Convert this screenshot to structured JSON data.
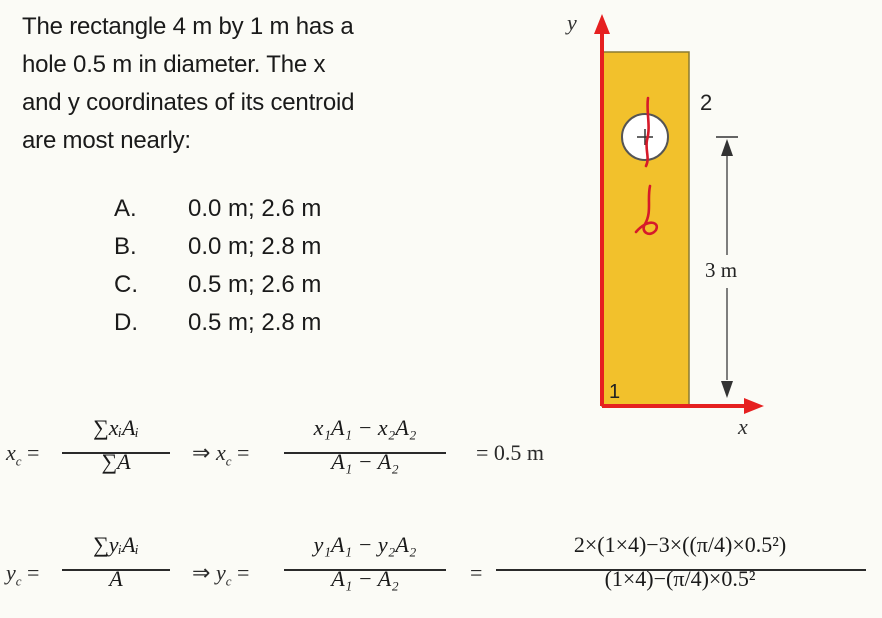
{
  "question": {
    "lines": [
      "The rectangle 4 m by 1 m has a",
      "hole 0.5 m in diameter.  The x",
      "and y coordinates of its centroid",
      "are most nearly:"
    ]
  },
  "choices": [
    {
      "letter": "A.",
      "text": "0.0 m;  2.6 m"
    },
    {
      "letter": "B.",
      "text": "0.0 m;  2.8 m"
    },
    {
      "letter": "C.",
      "text": "0.5 m;  2.6 m"
    },
    {
      "letter": "D.",
      "text": "0.5 m;  2.8 m"
    }
  ],
  "diagram": {
    "y_axis_label": "y",
    "x_axis_label": "x",
    "region1_label": "1",
    "region2_label": "2",
    "dimension_label": "3 m",
    "colors": {
      "rectangle": "#f2c12c",
      "axis": "#e62020",
      "ink": "#d61a2a",
      "dimension": "#333333"
    }
  },
  "equations": {
    "xc": {
      "lhs": "x",
      "lhs_sub": "c",
      "eq": "=",
      "num1": "∑xᵢAᵢ",
      "den1": "∑A",
      "implies": "⇒",
      "lhs2": "x",
      "lhs2_sub": "c",
      "num2": "x₁A₁ − x₂A₂",
      "den2": "A₁ − A₂",
      "result": "= 0.5 m"
    },
    "yc": {
      "lhs": "y",
      "lhs_sub": "c",
      "eq": "=",
      "num1": "∑yᵢAᵢ",
      "den1": "A",
      "implies": "⇒",
      "lhs2": "y",
      "lhs2_sub": "c",
      "num2": "y₁A₁ − y₂A₂",
      "den2": "A₁ − A₂",
      "eq2": "=",
      "num3": "2×(1×4)−3×((π/4)×0.5²)",
      "den3": "(1×4)−(π/4)×0.5²"
    }
  }
}
